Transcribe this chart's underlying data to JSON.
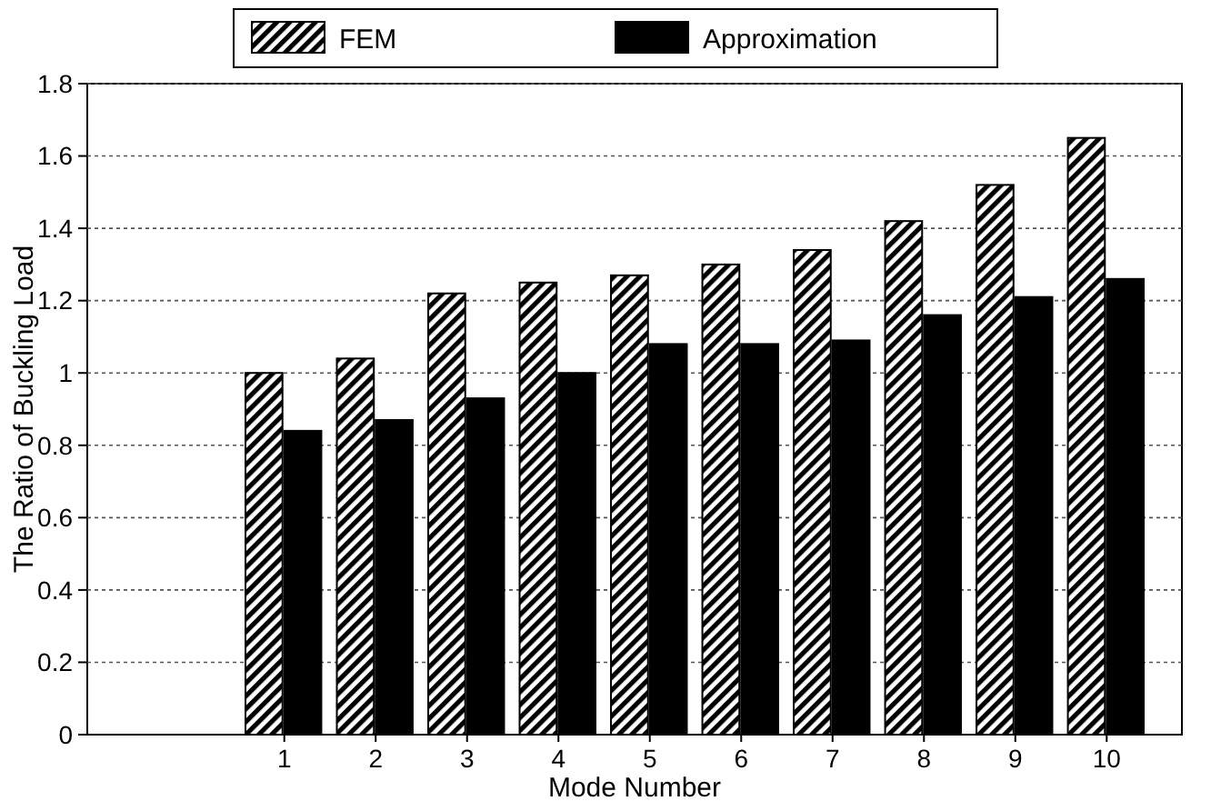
{
  "chart_data": {
    "type": "bar",
    "xlabel": "Mode Number",
    "ylabel": "The Ratio of Buckling Load",
    "categories": [
      "1",
      "2",
      "3",
      "4",
      "5",
      "6",
      "7",
      "8",
      "9",
      "10"
    ],
    "series": [
      {
        "name": "FEM",
        "color": "#000000",
        "values": [
          1.0,
          1.04,
          1.22,
          1.25,
          1.27,
          1.3,
          1.34,
          1.42,
          1.52,
          1.65
        ]
      },
      {
        "name": "Approximation",
        "color": "#000000",
        "values": [
          0.84,
          0.87,
          0.93,
          1.0,
          1.08,
          1.08,
          1.09,
          1.16,
          1.21,
          1.26
        ]
      }
    ],
    "ylim": [
      0,
      1.8
    ],
    "yticks": [
      0,
      0.2,
      0.4,
      0.6,
      0.8,
      1,
      1.2,
      1.4,
      1.6,
      1.8
    ],
    "grid": "y",
    "legend": "top"
  }
}
